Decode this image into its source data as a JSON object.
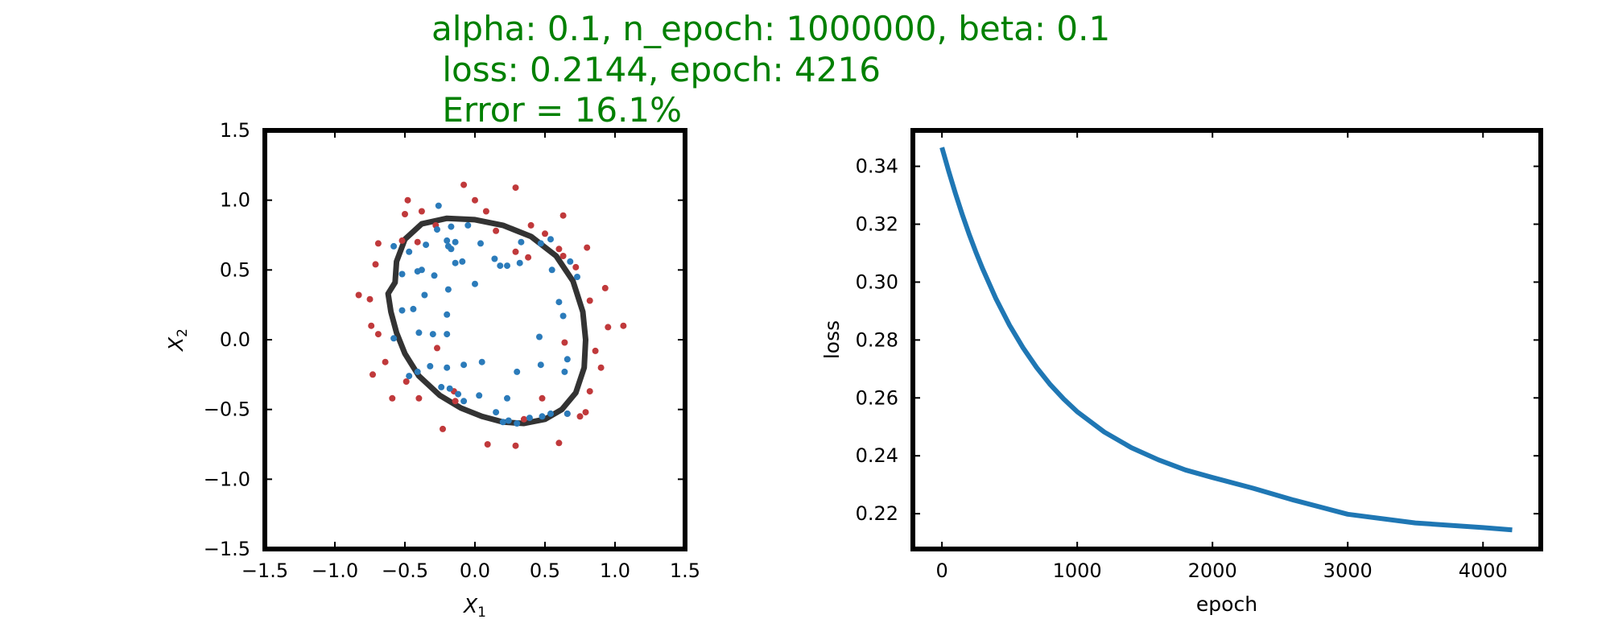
{
  "figure": {
    "title_lines": [
      "alpha: 0.1, n_epoch: 1000000, beta: 0.1",
      " loss: 0.2144, epoch: 4216",
      " Error = 16.1%"
    ],
    "title_color": "#008000"
  },
  "chart_data": [
    {
      "type": "scatter",
      "title": "",
      "xlabel_var": "X",
      "xlabel_sub": "1",
      "ylabel_var": "X",
      "ylabel_sub": "2",
      "xlim": [
        -1.5,
        1.5
      ],
      "ylim": [
        -1.5,
        1.5
      ],
      "xticks": [
        -1.5,
        -1.0,
        -0.5,
        0.0,
        0.5,
        1.0,
        1.5
      ],
      "yticks": [
        -1.5,
        -1.0,
        -0.5,
        0.0,
        0.5,
        1.0,
        1.5
      ],
      "xtick_labels": [
        "−1.5",
        "−1.0",
        "−0.5",
        "0.0",
        "0.5",
        "1.0",
        "1.5"
      ],
      "ytick_labels": [
        "−1.5",
        "−1.0",
        "−0.5",
        "0.0",
        "0.5",
        "1.0",
        "1.5"
      ],
      "grid": false,
      "series": [
        {
          "color": "#c0393b",
          "points": [
            [
              -0.48,
              1.0
            ],
            [
              -0.5,
              0.9
            ],
            [
              -0.38,
              0.92
            ],
            [
              -0.08,
              1.11
            ],
            [
              0.0,
              1.0
            ],
            [
              0.08,
              0.92
            ],
            [
              0.29,
              1.09
            ],
            [
              0.63,
              0.89
            ],
            [
              0.4,
              0.82
            ],
            [
              0.5,
              0.76
            ],
            [
              0.6,
              0.65
            ],
            [
              0.8,
              0.66
            ],
            [
              0.72,
              0.52
            ],
            [
              0.93,
              0.37
            ],
            [
              0.82,
              0.28
            ],
            [
              0.95,
              0.09
            ],
            [
              1.06,
              0.1
            ],
            [
              0.86,
              -0.08
            ],
            [
              0.9,
              -0.2
            ],
            [
              0.82,
              -0.37
            ],
            [
              0.79,
              -0.52
            ],
            [
              0.75,
              -0.55
            ],
            [
              0.66,
              -0.53
            ],
            [
              0.6,
              -0.74
            ],
            [
              0.29,
              -0.76
            ],
            [
              0.09,
              -0.75
            ],
            [
              0.35,
              -0.57
            ],
            [
              -0.23,
              -0.64
            ],
            [
              -0.14,
              -0.44
            ],
            [
              -0.15,
              -0.37
            ],
            [
              -0.49,
              -0.3
            ],
            [
              -0.4,
              -0.42
            ],
            [
              -0.59,
              -0.42
            ],
            [
              -0.64,
              -0.16
            ],
            [
              -0.73,
              -0.25
            ],
            [
              -0.69,
              0.04
            ],
            [
              -0.74,
              0.1
            ],
            [
              -0.83,
              0.32
            ],
            [
              -0.75,
              0.29
            ],
            [
              -0.71,
              0.54
            ],
            [
              -0.69,
              0.69
            ],
            [
              -0.52,
              0.71
            ],
            [
              -0.41,
              0.7
            ],
            [
              -0.28,
              0.82
            ],
            [
              0.15,
              0.78
            ],
            [
              0.29,
              0.63
            ],
            [
              -0.27,
              -0.06
            ],
            [
              0.64,
              -0.02
            ],
            [
              0.63,
              0.6
            ],
            [
              0.48,
              -0.42
            ],
            [
              0.38,
              0.59
            ]
          ]
        },
        {
          "color": "#2b7bba",
          "points": [
            [
              -0.26,
              0.96
            ],
            [
              -0.05,
              0.82
            ],
            [
              -0.17,
              0.81
            ],
            [
              -0.27,
              0.79
            ],
            [
              -0.2,
              0.71
            ],
            [
              -0.17,
              0.65
            ],
            [
              -0.14,
              0.7
            ],
            [
              -0.19,
              0.67
            ],
            [
              -0.35,
              0.68
            ],
            [
              -0.47,
              0.63
            ],
            [
              -0.58,
              0.67
            ],
            [
              -0.52,
              0.47
            ],
            [
              -0.38,
              0.5
            ],
            [
              -0.29,
              0.46
            ],
            [
              -0.19,
              0.36
            ],
            [
              -0.14,
              0.55
            ],
            [
              -0.09,
              0.56
            ],
            [
              0.0,
              0.4
            ],
            [
              0.04,
              0.69
            ],
            [
              0.14,
              0.58
            ],
            [
              0.18,
              0.53
            ],
            [
              0.23,
              0.53
            ],
            [
              0.33,
              0.7
            ],
            [
              0.32,
              0.55
            ],
            [
              0.47,
              0.69
            ],
            [
              0.54,
              0.72
            ],
            [
              0.68,
              0.56
            ],
            [
              0.73,
              0.45
            ],
            [
              0.55,
              0.5
            ],
            [
              0.6,
              0.27
            ],
            [
              0.63,
              0.17
            ],
            [
              0.46,
              0.02
            ],
            [
              0.66,
              -0.14
            ],
            [
              0.64,
              -0.23
            ],
            [
              0.47,
              -0.18
            ],
            [
              0.3,
              -0.23
            ],
            [
              0.23,
              -0.42
            ],
            [
              0.48,
              -0.55
            ],
            [
              0.54,
              -0.53
            ],
            [
              0.66,
              -0.53
            ],
            [
              0.39,
              -0.56
            ],
            [
              0.3,
              -0.6
            ],
            [
              0.2,
              -0.59
            ],
            [
              0.15,
              -0.52
            ],
            [
              0.03,
              -0.4
            ],
            [
              -0.08,
              -0.44
            ],
            [
              -0.12,
              -0.39
            ],
            [
              -0.18,
              -0.35
            ],
            [
              -0.24,
              -0.34
            ],
            [
              -0.32,
              -0.19
            ],
            [
              -0.47,
              -0.26
            ],
            [
              -0.41,
              -0.23
            ],
            [
              -0.2,
              -0.2
            ],
            [
              -0.08,
              -0.18
            ],
            [
              0.05,
              -0.16
            ],
            [
              -0.2,
              0.18
            ],
            [
              -0.3,
              0.04
            ],
            [
              -0.4,
              0.05
            ],
            [
              -0.58,
              0.01
            ],
            [
              -0.52,
              0.21
            ],
            [
              -0.44,
              0.22
            ],
            [
              -0.36,
              0.32
            ],
            [
              -0.41,
              0.49
            ],
            [
              -0.2,
              0.04
            ],
            [
              0.24,
              -0.58
            ]
          ]
        }
      ],
      "boundary": {
        "color": "#333333",
        "points": [
          [
            -0.57,
            0.41
          ],
          [
            -0.56,
            0.56
          ],
          [
            -0.5,
            0.72
          ],
          [
            -0.38,
            0.83
          ],
          [
            -0.2,
            0.87
          ],
          [
            0.0,
            0.86
          ],
          [
            0.2,
            0.82
          ],
          [
            0.4,
            0.74
          ],
          [
            0.58,
            0.6
          ],
          [
            0.7,
            0.42
          ],
          [
            0.77,
            0.2
          ],
          [
            0.79,
            0.0
          ],
          [
            0.78,
            -0.2
          ],
          [
            0.72,
            -0.38
          ],
          [
            0.62,
            -0.5
          ],
          [
            0.5,
            -0.57
          ],
          [
            0.35,
            -0.6
          ],
          [
            0.2,
            -0.59
          ],
          [
            0.05,
            -0.55
          ],
          [
            -0.1,
            -0.49
          ],
          [
            -0.25,
            -0.4
          ],
          [
            -0.4,
            -0.26
          ],
          [
            -0.5,
            -0.1
          ],
          [
            -0.56,
            0.05
          ],
          [
            -0.6,
            0.2
          ],
          [
            -0.62,
            0.33
          ]
        ]
      }
    },
    {
      "type": "line",
      "title": "",
      "xlabel": "epoch",
      "ylabel": "loss",
      "xlim": [
        -215,
        4427
      ],
      "ylim": [
        0.2078,
        0.3524
      ],
      "xticks": [
        0,
        1000,
        2000,
        3000,
        4000
      ],
      "yticks": [
        0.22,
        0.24,
        0.26,
        0.28,
        0.3,
        0.32,
        0.34
      ],
      "xtick_labels": [
        "0",
        "1000",
        "2000",
        "3000",
        "4000"
      ],
      "ytick_labels": [
        "0.22",
        "0.24",
        "0.26",
        "0.28",
        "0.30",
        "0.32",
        "0.34"
      ],
      "grid": false,
      "color": "#1f77b4",
      "series": [
        {
          "x": [
            0,
            50,
            100,
            150,
            200,
            250,
            300,
            400,
            500,
            600,
            700,
            800,
            900,
            1000,
            1200,
            1400,
            1600,
            1800,
            2000,
            2300,
            2600,
            3000,
            3500,
            4000,
            4216
          ],
          "values": [
            0.3465,
            0.3383,
            0.3306,
            0.3234,
            0.3167,
            0.3105,
            0.3047,
            0.2942,
            0.2851,
            0.2773,
            0.2705,
            0.2646,
            0.2596,
            0.2552,
            0.2482,
            0.2428,
            0.2386,
            0.2351,
            0.2325,
            0.2288,
            0.2247,
            0.2198,
            0.2168,
            0.2152,
            0.2144
          ]
        }
      ]
    }
  ]
}
